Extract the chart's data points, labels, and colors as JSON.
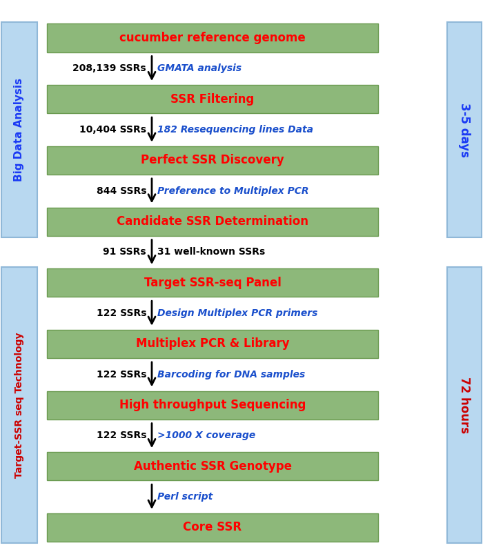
{
  "fig_width": 7.0,
  "fig_height": 8.0,
  "bg_color": "#ffffff",
  "box_color": "#8db87a",
  "box_border_color": "#6a9a50",
  "side_bar_color": "#b8d8f0",
  "side_bar_edge": "#90b8d8",
  "boxes": [
    {
      "label": "cucumber reference genome",
      "text_color": "#ff0000",
      "fontsize": 12
    },
    {
      "label": "SSR Filtering",
      "text_color": "#ff0000",
      "fontsize": 12
    },
    {
      "label": "Perfect SSR Discovery",
      "text_color": "#ff0000",
      "fontsize": 12
    },
    {
      "label": "Candidate SSR Determination",
      "text_color": "#ff0000",
      "fontsize": 12
    },
    {
      "label": "Target SSR-seq Panel",
      "text_color": "#ff0000",
      "fontsize": 12
    },
    {
      "label": "Multiplex PCR & Library",
      "text_color": "#ff0000",
      "fontsize": 12
    },
    {
      "label": "High throughput Sequencing",
      "text_color": "#ff0000",
      "fontsize": 12
    },
    {
      "label": "Authentic SSR Genotype",
      "text_color": "#ff0000",
      "fontsize": 12
    },
    {
      "label": "Core SSR",
      "text_color": "#ff0000",
      "fontsize": 12
    }
  ],
  "arrows": [
    {
      "left_text": "208,139 SSRs",
      "right_text": "GMATA analysis"
    },
    {
      "left_text": "10,404 SSRs",
      "right_text": "182 Resequencing lines Data"
    },
    {
      "left_text": "844 SSRs",
      "right_text": "Preference to Multiplex PCR"
    },
    {
      "left_text": "91 SSRs",
      "right_text": "31 well-known SSRs",
      "right_black": true
    },
    {
      "left_text": "122 SSRs",
      "right_text": "Design Multiplex PCR primers"
    },
    {
      "left_text": "122 SSRs",
      "right_text": "Barcoding for DNA samples"
    },
    {
      "left_text": "122 SSRs",
      "right_text": ">1000 X coverage"
    },
    {
      "left_text": "",
      "right_text": "Perl script"
    }
  ],
  "left_bar1_label": "Big Data Analysis",
  "left_bar1_color": "#1a3af5",
  "left_bar2_label": "Target-SSR seq Technology",
  "left_bar2_color": "#cc0000",
  "right_bar1_label": "3-5 days",
  "right_bar1_color": "#1a3af5",
  "right_bar2_label": "72 hours",
  "right_bar2_color": "#cc0000"
}
